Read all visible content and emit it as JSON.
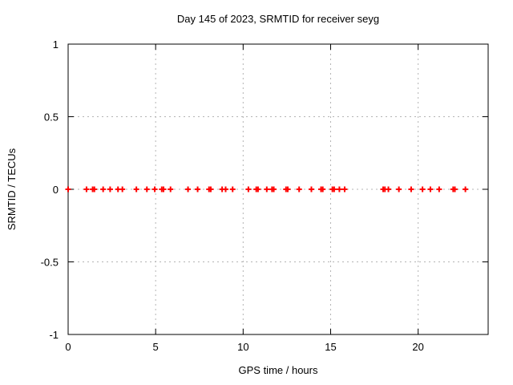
{
  "chart_data": {
    "type": "scatter",
    "title": "Day 145 of 2023, SRMTID for receiver seyg",
    "xlabel": "GPS time / hours",
    "ylabel": "SRMTID / TECUs",
    "xlim": [
      0,
      24
    ],
    "ylim": [
      -1,
      1
    ],
    "xticks": [
      0,
      5,
      10,
      15,
      20
    ],
    "yticks": [
      1,
      0.5,
      0,
      -0.5,
      -1
    ],
    "grid": true,
    "legend": "none",
    "marker": "plus",
    "series": [
      {
        "name": "SRMTID",
        "color": "#ff0000",
        "x": [
          0.0,
          1.05,
          1.4,
          1.5,
          2.0,
          2.4,
          2.85,
          3.1,
          3.9,
          4.5,
          4.95,
          5.35,
          5.45,
          5.85,
          6.85,
          7.4,
          8.05,
          8.15,
          8.8,
          9.0,
          9.4,
          10.3,
          10.75,
          10.85,
          11.35,
          11.65,
          11.75,
          12.45,
          12.55,
          13.2,
          13.9,
          14.45,
          14.55,
          15.1,
          15.2,
          15.5,
          15.8,
          18.0,
          18.1,
          18.3,
          18.9,
          19.6,
          20.25,
          20.7,
          21.2,
          22.0,
          22.1,
          22.7
        ],
        "y": [
          0,
          0,
          0,
          0,
          0,
          0,
          0,
          0,
          0,
          0,
          0,
          0,
          0,
          0,
          0,
          0,
          0,
          0,
          0,
          0,
          0,
          0,
          0,
          0,
          0,
          0,
          0,
          0,
          0,
          0,
          0,
          0,
          0,
          0,
          0,
          0,
          0,
          0,
          0,
          0,
          0,
          0,
          0,
          0,
          0,
          0,
          0,
          0
        ]
      }
    ]
  },
  "colors": {
    "background": "#ffffff",
    "frame": "#000000",
    "grid": "#b4b4b4",
    "marker": "#ff0000",
    "text": "#000000"
  }
}
